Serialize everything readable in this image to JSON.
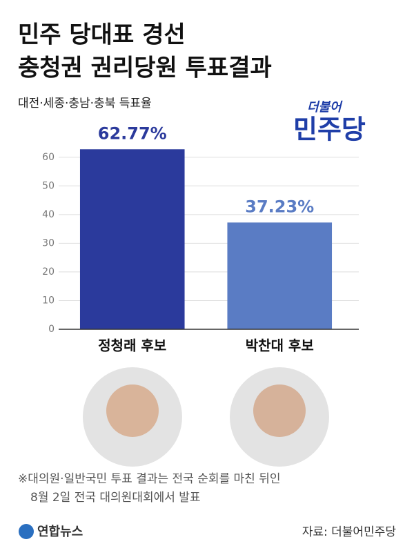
{
  "chart_data": {
    "type": "bar",
    "title": [
      "민주 당대표 경선",
      "충청권 권리당원 투표결과"
    ],
    "subtitle": "대전·세종·충남·충북 득표율",
    "logo": [
      "더불어",
      "민주당"
    ],
    "categories": [
      "정청래 후보",
      "박찬대 후보"
    ],
    "values": [
      62.77,
      37.23
    ],
    "value_labels": [
      "62.77%",
      "37.23%"
    ],
    "colors": [
      "#2b3a9c",
      "#5a7cc4"
    ],
    "ylim": [
      0,
      65
    ],
    "yticks": [
      0,
      10,
      20,
      30,
      40,
      50,
      60
    ],
    "grid": true,
    "note": [
      "※대의원·일반국민 투표 결과는 전국 순회를 마친 뒤인",
      "8월 2일 전국 대의원대회에서 발표"
    ],
    "agency": "연합뉴스",
    "source": "자료: 더불어민주당"
  }
}
